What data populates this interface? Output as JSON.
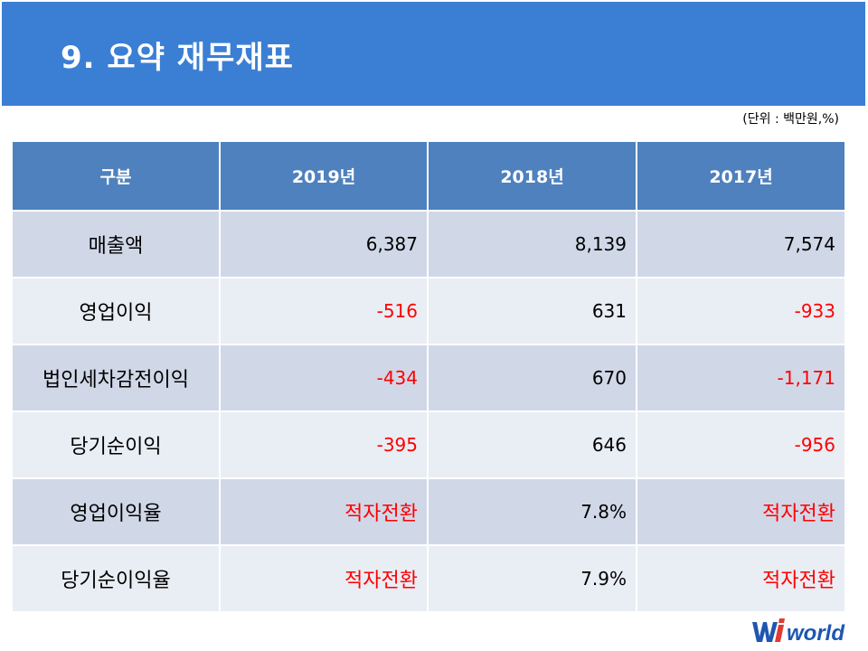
{
  "title": "9. 요약 재무재표",
  "unit_note": "(단위 : 백만원,%)",
  "table": {
    "headers": [
      "구분",
      "2019년",
      "2018년",
      "2017년"
    ],
    "rows": [
      {
        "label": "매출액",
        "cells": [
          {
            "value": "6,387",
            "color": "#000000"
          },
          {
            "value": "8,139",
            "color": "#000000"
          },
          {
            "value": "7,574",
            "color": "#000000"
          }
        ]
      },
      {
        "label": "영업이익",
        "cells": [
          {
            "value": "-516",
            "color": "#ff0000"
          },
          {
            "value": "631",
            "color": "#000000"
          },
          {
            "value": "-933",
            "color": "#ff0000"
          }
        ]
      },
      {
        "label": "법인세차감전이익",
        "cells": [
          {
            "value": "-434",
            "color": "#ff0000"
          },
          {
            "value": "670",
            "color": "#000000"
          },
          {
            "value": "-1,171",
            "color": "#ff0000"
          }
        ]
      },
      {
        "label": "당기순이익",
        "cells": [
          {
            "value": "-395",
            "color": "#ff0000"
          },
          {
            "value": "646",
            "color": "#000000"
          },
          {
            "value": "-956",
            "color": "#ff0000"
          }
        ]
      },
      {
        "label": "영업이익율",
        "cells": [
          {
            "value": "적자전환",
            "color": "#ff0000"
          },
          {
            "value": "7.8%",
            "color": "#000000"
          },
          {
            "value": "적자전환",
            "color": "#ff0000"
          }
        ]
      },
      {
        "label": "당기순이익율",
        "cells": [
          {
            "value": "적자전환",
            "color": "#ff0000"
          },
          {
            "value": "7.9%",
            "color": "#000000"
          },
          {
            "value": "적자전환",
            "color": "#ff0000"
          }
        ]
      }
    ]
  },
  "logo": {
    "text": "Wiworld",
    "colors": {
      "primary": "#1e56b0",
      "accent": "#e23a2f"
    }
  },
  "colors": {
    "title_bar": "#3a7fd4",
    "header_bg": "#4e81bd",
    "row_dark": "#d0d8e8",
    "row_light": "#e9edf4",
    "negative": "#ff0000"
  }
}
